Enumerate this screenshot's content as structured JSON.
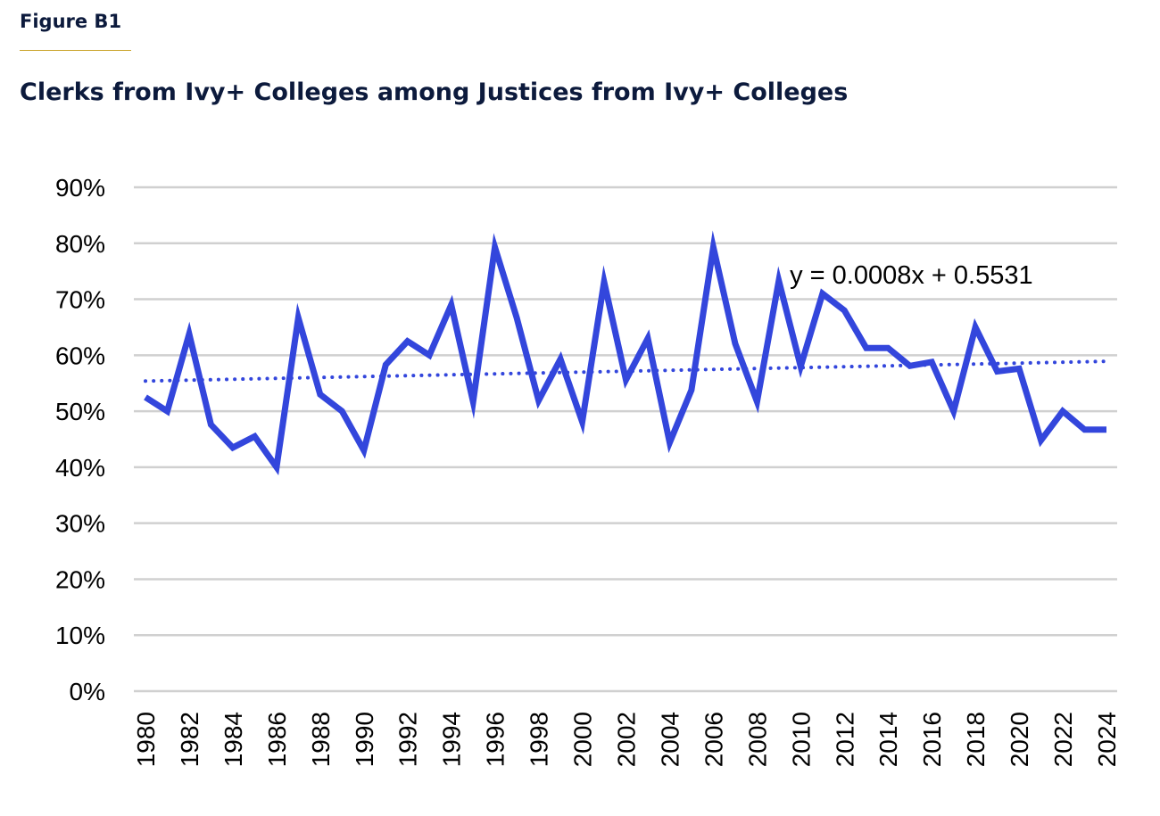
{
  "figure_label": "Figure B1",
  "title": "Clerks from Ivy+ Colleges among Justices from Ivy+ Colleges",
  "colors": {
    "line": "#3346dc",
    "trend": "#3346dc",
    "grid": "#d0d0d0",
    "title": "#0c1a3c",
    "rule": "#c9a227"
  },
  "chart_data": {
    "type": "line",
    "title": "Clerks from Ivy+ Colleges among Justices from Ivy+ Colleges",
    "xlabel": "",
    "ylabel": "",
    "ylim": [
      0,
      0.9
    ],
    "y_ticks": [
      0,
      0.1,
      0.2,
      0.3,
      0.4,
      0.5,
      0.6,
      0.7,
      0.8,
      0.9
    ],
    "y_tick_labels": [
      "0%",
      "10%",
      "20%",
      "30%",
      "40%",
      "50%",
      "60%",
      "70%",
      "80%",
      "90%"
    ],
    "x_tick_labels": [
      "1980",
      "1982",
      "1984",
      "1986",
      "1988",
      "1990",
      "1992",
      "1994",
      "1996",
      "1998",
      "2000",
      "2002",
      "2004",
      "2006",
      "2008",
      "2010",
      "2012",
      "2014",
      "2016",
      "2018",
      "2020",
      "2022",
      "2024"
    ],
    "grid": true,
    "legend": "none",
    "x": [
      1980,
      1981,
      1982,
      1983,
      1984,
      1985,
      1986,
      1987,
      1988,
      1989,
      1990,
      1991,
      1992,
      1993,
      1994,
      1995,
      1996,
      1997,
      1998,
      1999,
      2000,
      2001,
      2002,
      2003,
      2004,
      2005,
      2006,
      2007,
      2008,
      2009,
      2010,
      2011,
      2012,
      2013,
      2014,
      2015,
      2016,
      2017,
      2018,
      2019,
      2020,
      2021,
      2022,
      2023,
      2024
    ],
    "series": [
      {
        "values": [
          0.525,
          0.5,
          0.638,
          0.476,
          0.435,
          0.455,
          0.4,
          0.667,
          0.53,
          0.5,
          0.43,
          0.583,
          0.625,
          0.6,
          0.69,
          0.517,
          0.793,
          0.667,
          0.519,
          0.593,
          0.481,
          0.731,
          0.556,
          0.63,
          0.444,
          0.538,
          0.793,
          0.621,
          0.517,
          0.733,
          0.58,
          0.71,
          0.68,
          0.613,
          0.613,
          0.581,
          0.588,
          0.5,
          0.65,
          0.571,
          0.576,
          0.448,
          0.5,
          0.467,
          0.467
        ]
      }
    ],
    "trendline": {
      "slope": 0.0008,
      "intercept": 0.5531,
      "label": "y = 0.0008x + 0.5531"
    }
  }
}
